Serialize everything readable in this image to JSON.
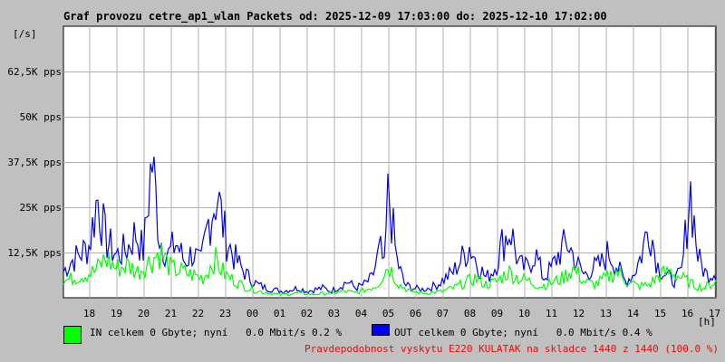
{
  "title": "Graf provozu cetre_ap1_wlan Packets od: 2025-12-09 17:03:00 do: 2025-12-10 17:02:00",
  "y_unit_label": "[/s]",
  "x_unit_label": "[h]",
  "legend": {
    "in_text": "IN celkem 0 Gbyte; nyní   0.0 Mbit/s 0.2 %",
    "out_text": "OUT celkem 0 Gbyte; nyní   0.0 Mbit/s 0.4 %",
    "in_color": "#00ff00",
    "out_color": "#0000ff"
  },
  "footer_note": "Pravdepodobnost vyskytu E220 KULATAK na skladce 1440 z 1440 (100.0 %)",
  "footer_color": "#ff0000",
  "chart_data": {
    "type": "area",
    "ylim": [
      0,
      75000
    ],
    "xlim": [
      17.05,
      41.05
    ],
    "y_ticks": [
      12500,
      25000,
      37500,
      50000,
      62500
    ],
    "y_tick_labels": [
      "12,5K pps",
      "25K pps",
      "37,5K pps",
      "50K pps",
      "62,5K pps"
    ],
    "x_ticks": [
      18,
      19,
      20,
      21,
      22,
      23,
      24,
      25,
      26,
      27,
      28,
      29,
      30,
      31,
      32,
      33,
      34,
      35,
      36,
      37,
      38,
      39,
      40,
      41
    ],
    "x_tick_labels": [
      "18",
      "19",
      "20",
      "21",
      "22",
      "23",
      "00",
      "01",
      "02",
      "03",
      "04",
      "05",
      "06",
      "07",
      "08",
      "09",
      "10",
      "11",
      "12",
      "13",
      "14",
      "15",
      "16",
      "17"
    ],
    "grid": true,
    "series": [
      {
        "name": "OUT",
        "color": "#0000ff",
        "x": [
          17.05,
          17.3,
          17.6,
          18.0,
          18.3,
          18.6,
          19.0,
          19.4,
          19.7,
          20.0,
          20.3,
          20.6,
          20.9,
          21.2,
          21.5,
          21.8,
          22.1,
          22.4,
          22.7,
          23.0,
          23.3,
          23.6,
          23.9,
          24.2,
          24.5,
          24.8,
          25.1,
          25.4,
          25.7,
          26.0,
          26.3,
          26.6,
          26.9,
          27.2,
          27.5,
          27.8,
          28.1,
          28.4,
          28.7,
          28.85,
          29.0,
          29.3,
          29.6,
          29.9,
          30.2,
          30.5,
          30.8,
          31.1,
          31.4,
          31.7,
          32.0,
          32.3,
          32.6,
          32.9,
          33.2,
          33.5,
          33.8,
          34.1,
          34.4,
          34.7,
          35.0,
          35.3,
          35.6,
          35.9,
          36.2,
          36.5,
          36.8,
          37.1,
          37.4,
          37.7,
          38.0,
          38.3,
          38.6,
          38.9,
          39.2,
          39.5,
          39.8,
          40.1,
          40.4,
          40.7,
          41.05
        ],
        "values": [
          8000,
          11000,
          13000,
          16000,
          31000,
          18000,
          13000,
          15000,
          20000,
          14000,
          43000,
          18000,
          13000,
          17000,
          11000,
          14000,
          10000,
          24000,
          32000,
          19000,
          13000,
          9000,
          6000,
          4000,
          3000,
          2500,
          2000,
          2500,
          3000,
          2000,
          2500,
          3000,
          2000,
          3500,
          5000,
          3000,
          4000,
          6000,
          15000,
          9000,
          33000,
          12000,
          4000,
          3000,
          2500,
          3000,
          4000,
          6000,
          8000,
          12000,
          16000,
          10000,
          6000,
          9000,
          17000,
          21000,
          10000,
          9000,
          14000,
          6000,
          9000,
          14000,
          17000,
          11000,
          7000,
          9000,
          10000,
          14000,
          10000,
          5000,
          7000,
          13000,
          23000,
          10000,
          7000,
          5000,
          8000,
          34000,
          12000,
          7000,
          8000
        ]
      },
      {
        "name": "IN",
        "color": "#00ff00",
        "x": [
          17.05,
          17.4,
          17.8,
          18.2,
          18.6,
          19.0,
          19.4,
          19.8,
          20.2,
          20.6,
          21.0,
          21.4,
          21.8,
          22.2,
          22.6,
          23.0,
          23.4,
          23.8,
          24.2,
          24.6,
          25.0,
          25.4,
          25.8,
          26.2,
          26.6,
          27.0,
          27.4,
          27.8,
          28.2,
          28.6,
          29.0,
          29.4,
          29.8,
          30.2,
          30.6,
          31.0,
          31.4,
          31.8,
          32.2,
          32.6,
          33.0,
          33.4,
          33.8,
          34.2,
          34.6,
          35.0,
          35.4,
          35.8,
          36.2,
          36.6,
          37.0,
          37.4,
          37.8,
          38.2,
          38.6,
          39.0,
          39.4,
          39.8,
          40.2,
          40.6,
          41.05
        ],
        "values": [
          5000,
          6000,
          7000,
          8000,
          12000,
          9000,
          10000,
          8000,
          11000,
          14000,
          9000,
          8000,
          7000,
          6000,
          12000,
          7000,
          5000,
          3000,
          2000,
          1500,
          1000,
          1200,
          1500,
          1000,
          1300,
          1500,
          2000,
          1500,
          2500,
          4000,
          10000,
          4000,
          2000,
          1500,
          1500,
          2000,
          3000,
          4500,
          6000,
          4000,
          5000,
          8000,
          6000,
          5000,
          3500,
          4500,
          6000,
          9000,
          5000,
          4000,
          6000,
          8000,
          5000,
          3500,
          4000,
          7000,
          8000,
          6000,
          4000,
          3000,
          5000
        ]
      }
    ]
  }
}
